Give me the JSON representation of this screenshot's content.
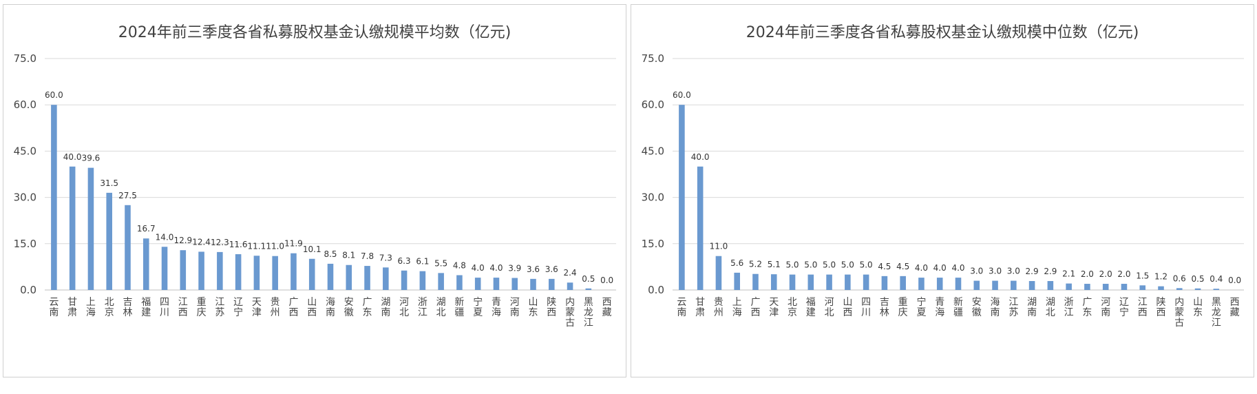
{
  "chart_data": [
    {
      "type": "bar",
      "title": "2024年前三季度各省私募股权基金认缴规模平均数（亿元)",
      "ylim": [
        0,
        75
      ],
      "yticks": [
        "0.0",
        "15.0",
        "30.0",
        "45.0",
        "60.0",
        "75.0"
      ],
      "grid": true,
      "bar_color": "#6a99d0",
      "categories": [
        "云南",
        "甘肃",
        "上海",
        "北京",
        "吉林",
        "福建",
        "四川",
        "江西",
        "重庆",
        "江苏",
        "辽宁",
        "天津",
        "贵州",
        "广西",
        "山西",
        "海南",
        "安徽",
        "广东",
        "湖南",
        "河北",
        "浙江",
        "湖北",
        "新疆",
        "宁夏",
        "青海",
        "河南",
        "山东",
        "陕西",
        "内蒙古",
        "黑龙江",
        "西藏"
      ],
      "values": [
        60.0,
        40.0,
        39.6,
        31.5,
        27.5,
        16.7,
        14.0,
        12.9,
        12.4,
        12.3,
        11.6,
        11.1,
        11.0,
        11.9,
        10.1,
        8.5,
        8.1,
        7.8,
        7.3,
        6.3,
        6.1,
        5.5,
        4.8,
        4.0,
        4.0,
        3.9,
        3.6,
        3.6,
        2.4,
        0.5,
        0.0
      ],
      "data_labels": [
        "60.0",
        "40.0",
        "39.6",
        "31.5",
        "27.5",
        "16.7",
        "14.0",
        "12.9",
        "12.4",
        "12.3",
        "11.6",
        "11.1",
        "11.0",
        "11.9",
        "10.1",
        "8.5",
        "8.1",
        "7.8",
        "7.3",
        "6.3",
        "6.1",
        "5.5",
        "4.8",
        "4.0",
        "4.0",
        "3.9",
        "3.6",
        "3.6",
        "2.4",
        "0.5",
        "0.0"
      ]
    },
    {
      "type": "bar",
      "title": "2024年前三季度各省私募股权基金认缴规模中位数（亿元)",
      "ylim": [
        0,
        75
      ],
      "yticks": [
        "0.0",
        "15.0",
        "30.0",
        "45.0",
        "60.0",
        "75.0"
      ],
      "grid": true,
      "bar_color": "#6a99d0",
      "categories": [
        "云南",
        "甘肃",
        "贵州",
        "上海",
        "广西",
        "天津",
        "北京",
        "福建",
        "河北",
        "山西",
        "四川",
        "吉林",
        "重庆",
        "宁夏",
        "青海",
        "新疆",
        "安徽",
        "海南",
        "江苏",
        "湖南",
        "湖北",
        "浙江",
        "广东",
        "河南",
        "辽宁",
        "江西",
        "陕西",
        "内蒙古",
        "山东",
        "黑龙江",
        "西藏"
      ],
      "values": [
        60.0,
        40.0,
        11.0,
        5.6,
        5.2,
        5.1,
        5.0,
        5.0,
        5.0,
        5.0,
        5.0,
        4.5,
        4.5,
        4.0,
        4.0,
        4.0,
        3.0,
        3.0,
        3.0,
        2.9,
        2.9,
        2.1,
        2.0,
        2.0,
        2.0,
        1.5,
        1.2,
        0.6,
        0.5,
        0.4,
        0.0
      ],
      "data_labels": [
        "60.0",
        "40.0",
        "11.0",
        "5.6",
        "5.2",
        "5.1",
        "5.0",
        "5.0",
        "5.0",
        "5.0",
        "5.0",
        "4.5",
        "4.5",
        "4.0",
        "4.0",
        "4.0",
        "3.0",
        "3.0",
        "3.0",
        "2.9",
        "2.9",
        "2.1",
        "2.0",
        "2.0",
        "2.0",
        "1.5",
        "1.2",
        "0.6",
        "0.5",
        "0.4",
        "0.0"
      ]
    }
  ]
}
